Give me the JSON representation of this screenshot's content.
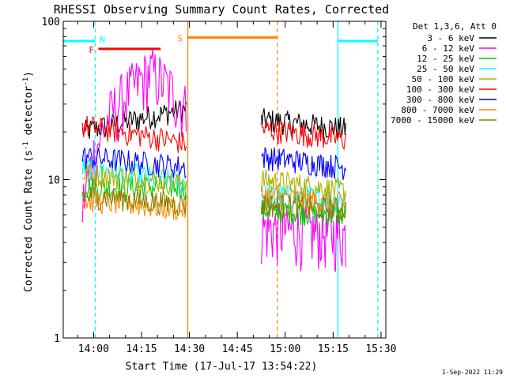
{
  "chart_data": {
    "type": "line",
    "title": "RHESSI Observing Summary Count Rates, Corrected",
    "xlabel": "Start Time (17-Jul-17 13:54:22)",
    "ylabel": "Corrected Count Rate (s⁻¹ detector⁻¹)",
    "ylabel_parts": {
      "main": "Corrected Count Rate (s",
      "sup1": "-1",
      "mid": " detector",
      "sup2": "-1",
      "end": ")"
    },
    "y_scale": "log",
    "ylim": [
      1,
      100
    ],
    "xlim_minutes": [
      -9.5,
      37.5
    ],
    "x_ticks": [
      {
        "m": 0,
        "label": "14:00"
      },
      {
        "m": 15,
        "label": "14:15"
      },
      {
        "m": 30,
        "label": "14:30"
      },
      {
        "m": 45,
        "label": "14:45"
      },
      {
        "m": 60,
        "label": "15:00"
      },
      {
        "m": 75,
        "label": "15:15"
      },
      {
        "m": 90,
        "label": "15:30"
      }
    ],
    "y_ticks": [
      {
        "v": 1,
        "label": "1"
      },
      {
        "v": 10,
        "label": "10"
      },
      {
        "v": 100,
        "label": "100"
      }
    ],
    "legend_header": "Det 1,3,6, Att 0",
    "legend_placement": "right",
    "series": [
      {
        "name": "3 - 6 keV",
        "color": "#000000",
        "seg1": [
          20,
          28
        ],
        "seg2": [
          24,
          21
        ]
      },
      {
        "name": "6 - 12 keV",
        "color": "#ff00ff",
        "seg1": [
          6.5,
          30,
          48,
          28
        ],
        "seg2": [
          5.0,
          4.5
        ]
      },
      {
        "name": "12 - 25 keV",
        "color": "#00cc00",
        "seg1": [
          9,
          9
        ],
        "seg2": [
          6.5,
          6.0
        ]
      },
      {
        "name": "25 - 50 keV",
        "color": "#00ffff",
        "seg1": [
          12,
          9.5
        ],
        "seg2": [
          8,
          7.5
        ]
      },
      {
        "name": "50 - 100 keV",
        "color": "#b0b000",
        "seg1": [
          11,
          9.5
        ],
        "seg2": [
          10,
          8.5
        ]
      },
      {
        "name": "100 - 300 keV",
        "color": "#ff0000",
        "seg1": [
          22,
          17
        ],
        "seg2": [
          21,
          18
        ]
      },
      {
        "name": "300 - 800 keV",
        "color": "#0000ff",
        "seg1": [
          14,
          12
        ],
        "seg2": [
          14,
          12
        ]
      },
      {
        "name": "800 - 7000 keV",
        "color": "#ff8800",
        "seg1": [
          7.5,
          6.5
        ],
        "seg2": [
          8,
          7
        ]
      },
      {
        "name": "7000 - 15000 keV",
        "color": "#808000",
        "seg1": [
          8,
          7
        ],
        "seg2": [
          7,
          6.5
        ]
      }
    ],
    "segment_ranges_minutes": [
      [
        -3.5,
        29
      ],
      [
        52.5,
        79
      ]
    ],
    "annotations": [
      {
        "label": "N",
        "color": "#00ffff",
        "bar_minutes": [
          -9.5,
          0.5
        ],
        "bar_level": 75,
        "solid_line": null,
        "dashed_line": 0.5
      },
      {
        "label": "N",
        "color": "#00ffff",
        "bar_minutes": [
          76.5,
          89
        ],
        "bar_level": 75,
        "solid_line": 76.5,
        "dashed_line": 89
      },
      {
        "label": "F",
        "color": "#ff0000",
        "bar_minutes": [
          1.5,
          21
        ],
        "bar_level": 67
      },
      {
        "label": "S",
        "color": "#ff8800",
        "bar_minutes": [
          29.5,
          57.5
        ],
        "bar_level": 79,
        "solid_line": 29.5,
        "dashed_line": 57.5
      }
    ],
    "timestamp": "1-Sep-2022 11:29"
  },
  "colors": {
    "axis": "#000000",
    "background": "#ffffff"
  }
}
